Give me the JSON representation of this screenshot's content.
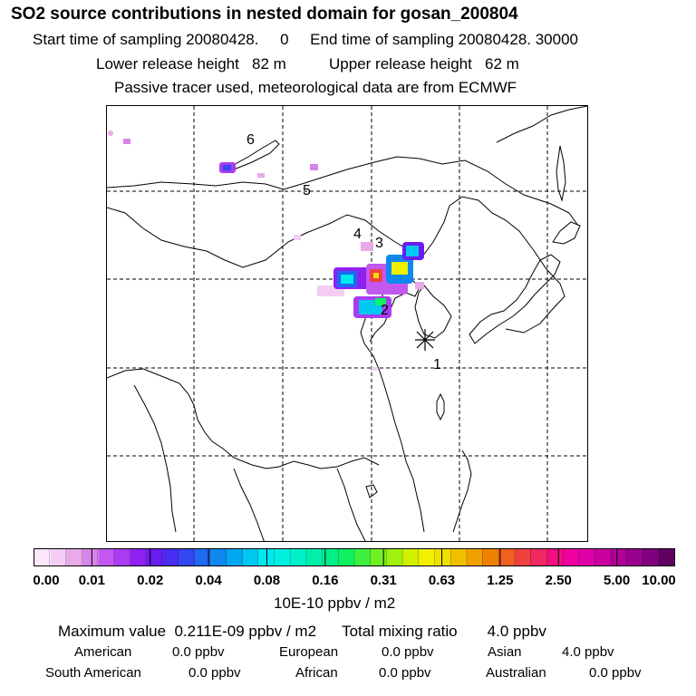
{
  "header": {
    "title": "SO2 source contributions in nested domain for gosan_200804",
    "sampling_line": "Start time of sampling 20080428.     0     End time of sampling 20080428. 30000",
    "height_line": "Lower release height   82 m          Upper release height   62 m",
    "tracer_line": "Passive tracer used, meteorological data are from ECMWF"
  },
  "map": {
    "region_labels": [
      {
        "id": "1",
        "text": "1"
      },
      {
        "id": "2",
        "text": "2"
      },
      {
        "id": "3",
        "text": "3"
      },
      {
        "id": "4",
        "text": "4"
      },
      {
        "id": "5",
        "text": "5"
      },
      {
        "id": "6",
        "text": "6"
      }
    ],
    "receptor_marker": "asterisk",
    "receptor_name": "gosan"
  },
  "colorbar": {
    "colors": [
      "#fbe9fb",
      "#f3cdf3",
      "#e8aae8",
      "#d783e7",
      "#c258f0",
      "#a83cf0",
      "#8f20f0",
      "#6a1cf0",
      "#4a2cf0",
      "#3348f0",
      "#1f68f0",
      "#0f88f0",
      "#00a8f0",
      "#00c8f0",
      "#00e8f0",
      "#00f0e0",
      "#00f0c8",
      "#00f0a8",
      "#00f088",
      "#10f060",
      "#40f040",
      "#70f020",
      "#a0f010",
      "#d0f000",
      "#f0f000",
      "#f0e000",
      "#f0c000",
      "#f0a000",
      "#f08000",
      "#f06020",
      "#f04040",
      "#f02860",
      "#f01080",
      "#f000a0",
      "#e000a8",
      "#c800a0",
      "#b00098",
      "#980090",
      "#800080",
      "#600060"
    ],
    "tick_labels": [
      "0.00",
      "0.01",
      "0.02",
      "0.04",
      "0.08",
      "0.16",
      "0.31",
      "0.63",
      "1.25",
      "2.50",
      "5.00",
      "10.00"
    ],
    "unit_label": "10E-10 ppbv / m2"
  },
  "summary": {
    "max_line": "Maximum value  0.211E-09 ppbv / m2      Total mixing ratio       4.0 ppbv",
    "contributions": [
      {
        "name": "American",
        "value": "0.0 ppbv"
      },
      {
        "name": "European",
        "value": "0.0 ppbv"
      },
      {
        "name": "Asian",
        "value": "4.0 ppbv"
      },
      {
        "name": "South American",
        "value": "0.0 ppbv"
      },
      {
        "name": "African",
        "value": "0.0 ppbv"
      },
      {
        "name": "Australian",
        "value": "0.0 ppbv"
      }
    ]
  }
}
